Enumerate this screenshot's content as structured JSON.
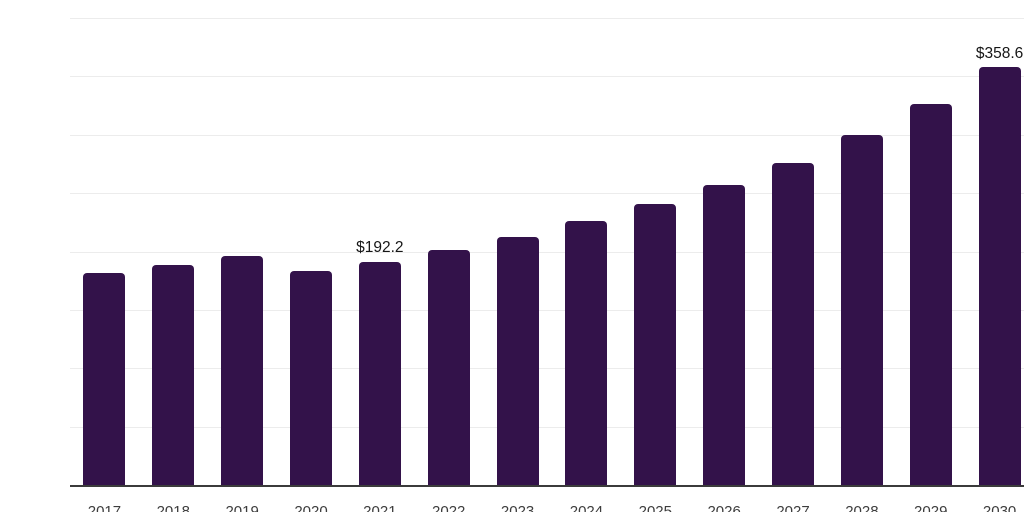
{
  "chart_data": {
    "type": "bar",
    "title": "",
    "xlabel": "",
    "ylabel": "",
    "categories": [
      "2017",
      "2018",
      "2019",
      "2020",
      "2021",
      "2022",
      "2023",
      "2024",
      "2025",
      "2026",
      "2027",
      "2028",
      "2029",
      "2030"
    ],
    "values": [
      182.2,
      188.9,
      196.7,
      184.4,
      192.2,
      202.3,
      213.2,
      226.7,
      241.5,
      257.9,
      276.9,
      300.4,
      327.1,
      358.6
    ],
    "data_labels": {
      "2021": "$192.2",
      "2030": "$358.6"
    },
    "ylim": [
      0,
      400
    ],
    "gridline_step": 50,
    "grid": true,
    "legend": false,
    "y_tick_labels_visible": false,
    "colors": {
      "bar": "#33124a",
      "background": "#ffffff",
      "gridline": "#ececec",
      "axis_line": "#3b3b3b",
      "value_label_text": "#161616",
      "tick_label_text": "#3d3d3d"
    }
  }
}
